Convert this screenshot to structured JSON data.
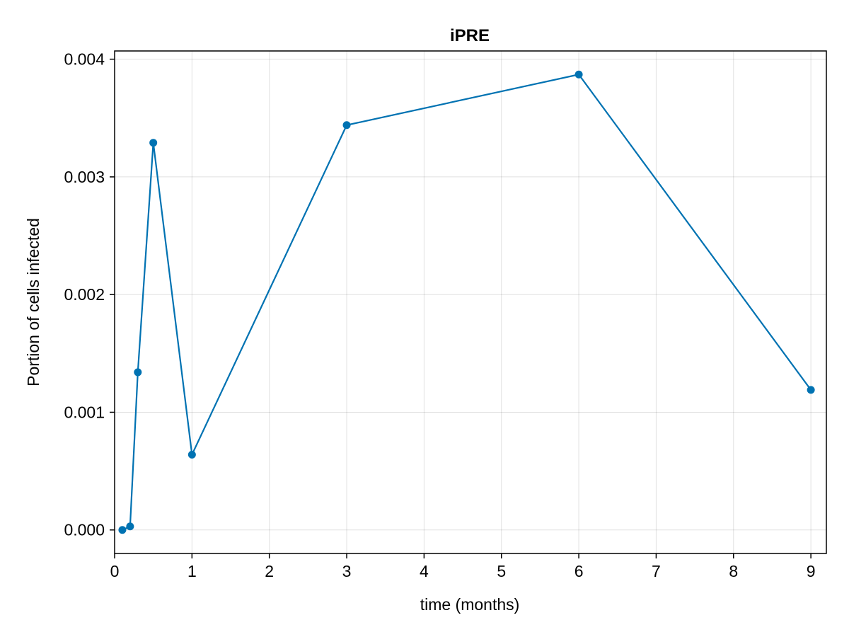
{
  "chart_data": {
    "type": "line",
    "title": "iPRE",
    "xlabel": "time (months)",
    "ylabel": "Portion of cells infected",
    "xlim": [
      0,
      9.2
    ],
    "ylim": [
      -0.0002,
      0.00407
    ],
    "xticks": [
      0,
      1,
      2,
      3,
      4,
      5,
      6,
      7,
      8,
      9
    ],
    "xtick_labels": [
      "0",
      "1",
      "2",
      "3",
      "4",
      "5",
      "6",
      "7",
      "8",
      "9"
    ],
    "yticks": [
      0,
      0.001,
      0.002,
      0.003,
      0.004
    ],
    "ytick_labels": [
      "0.000",
      "0.001",
      "0.002",
      "0.003",
      "0.004"
    ],
    "grid": true,
    "series": [
      {
        "color": "#0072b2",
        "markers": true,
        "x": [
          0.1,
          0.2,
          0.3,
          0.5,
          1,
          3,
          6,
          9
        ],
        "y": [
          0.0,
          3e-05,
          0.00134,
          0.00329,
          0.00064,
          0.00344,
          0.00387,
          0.00119
        ]
      }
    ]
  }
}
